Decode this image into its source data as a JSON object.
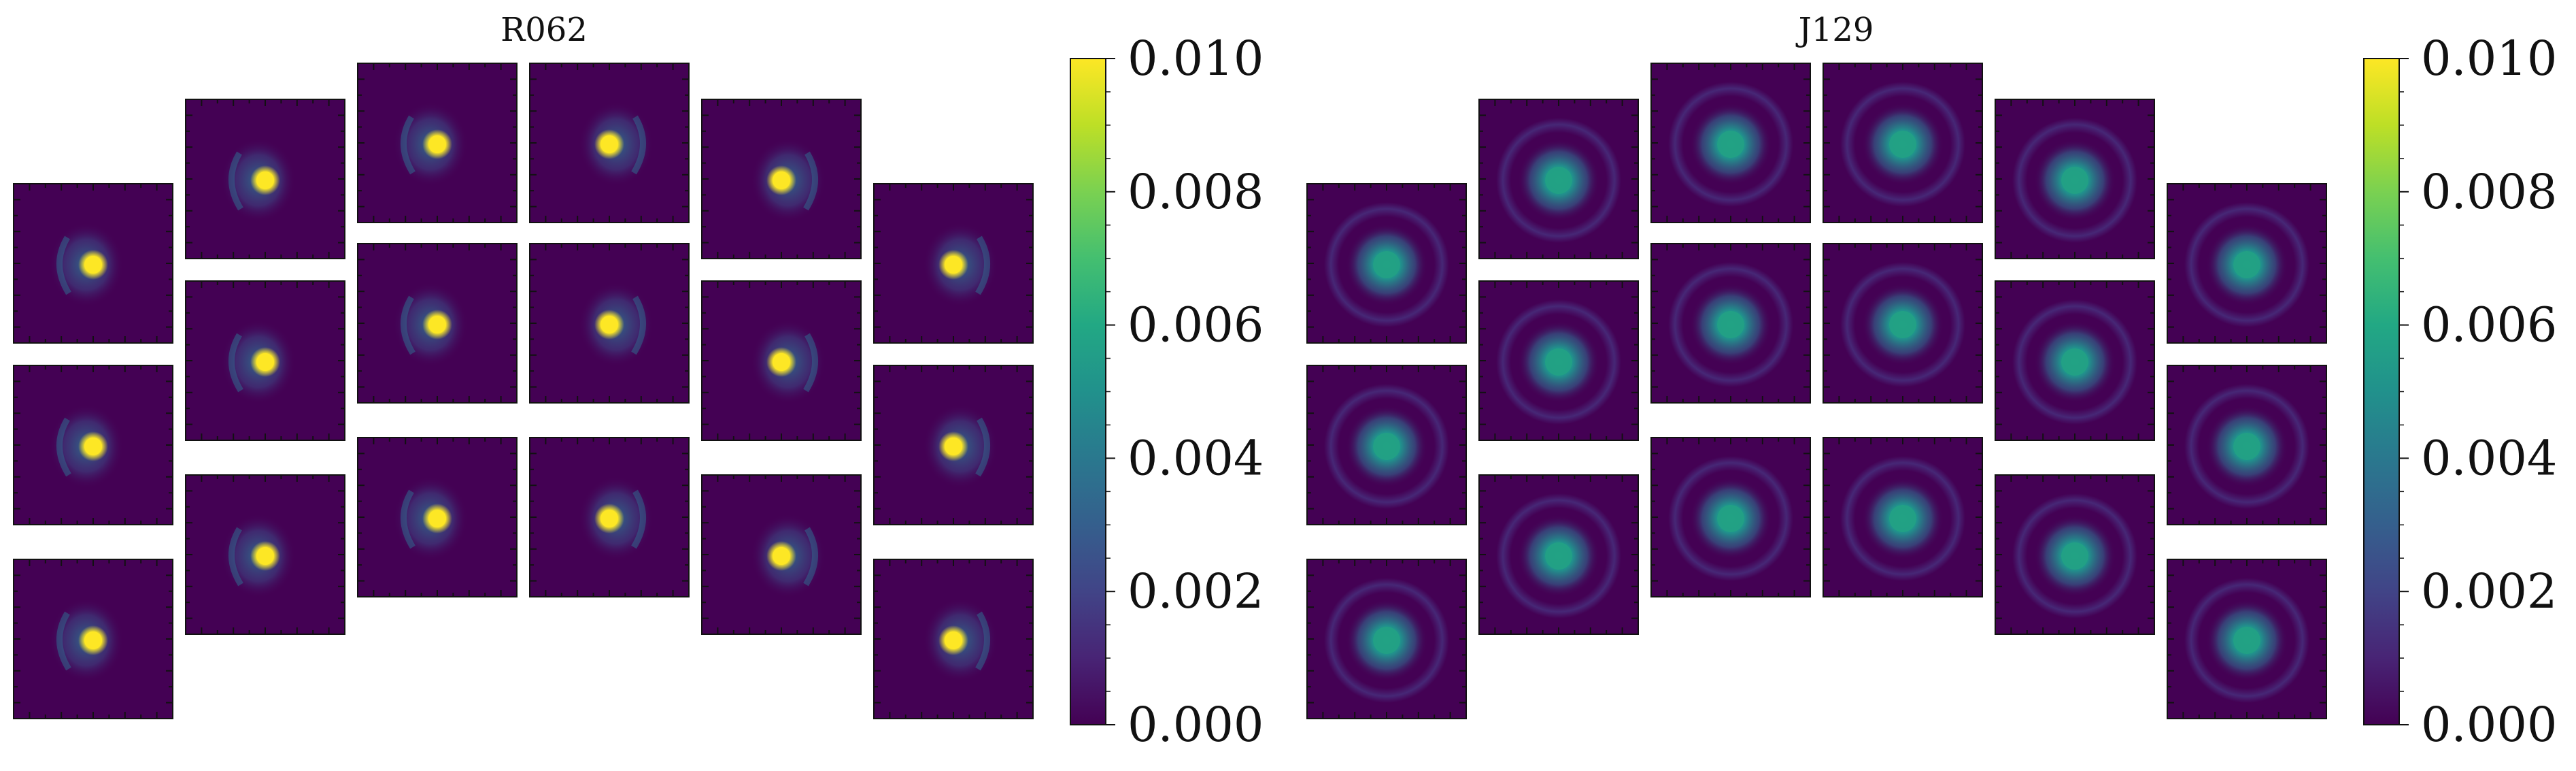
{
  "chart_data": [
    {
      "type": "heatmap",
      "title": "R062",
      "columns": [
        3,
        3,
        3,
        3,
        3,
        3
      ],
      "stamp_style": "sharp",
      "colorbar": {
        "cmap": "viridis",
        "range": [
          0.0,
          0.01
        ],
        "ticks": [
          "0.000",
          "0.002",
          "0.004",
          "0.006",
          "0.008",
          "0.010"
        ]
      }
    },
    {
      "type": "heatmap",
      "title": "J129",
      "columns": [
        3,
        3,
        3,
        3,
        3,
        3
      ],
      "stamp_style": "diffuse",
      "colorbar": {
        "cmap": "viridis",
        "range": [
          0.0,
          0.01
        ],
        "ticks": [
          "0.000",
          "0.002",
          "0.004",
          "0.006",
          "0.008",
          "0.010"
        ]
      }
    }
  ],
  "colors": {
    "background": "#440154",
    "core_sharp": "#fde725",
    "core_diffuse": "#22a284",
    "halo": "#3b528b"
  }
}
